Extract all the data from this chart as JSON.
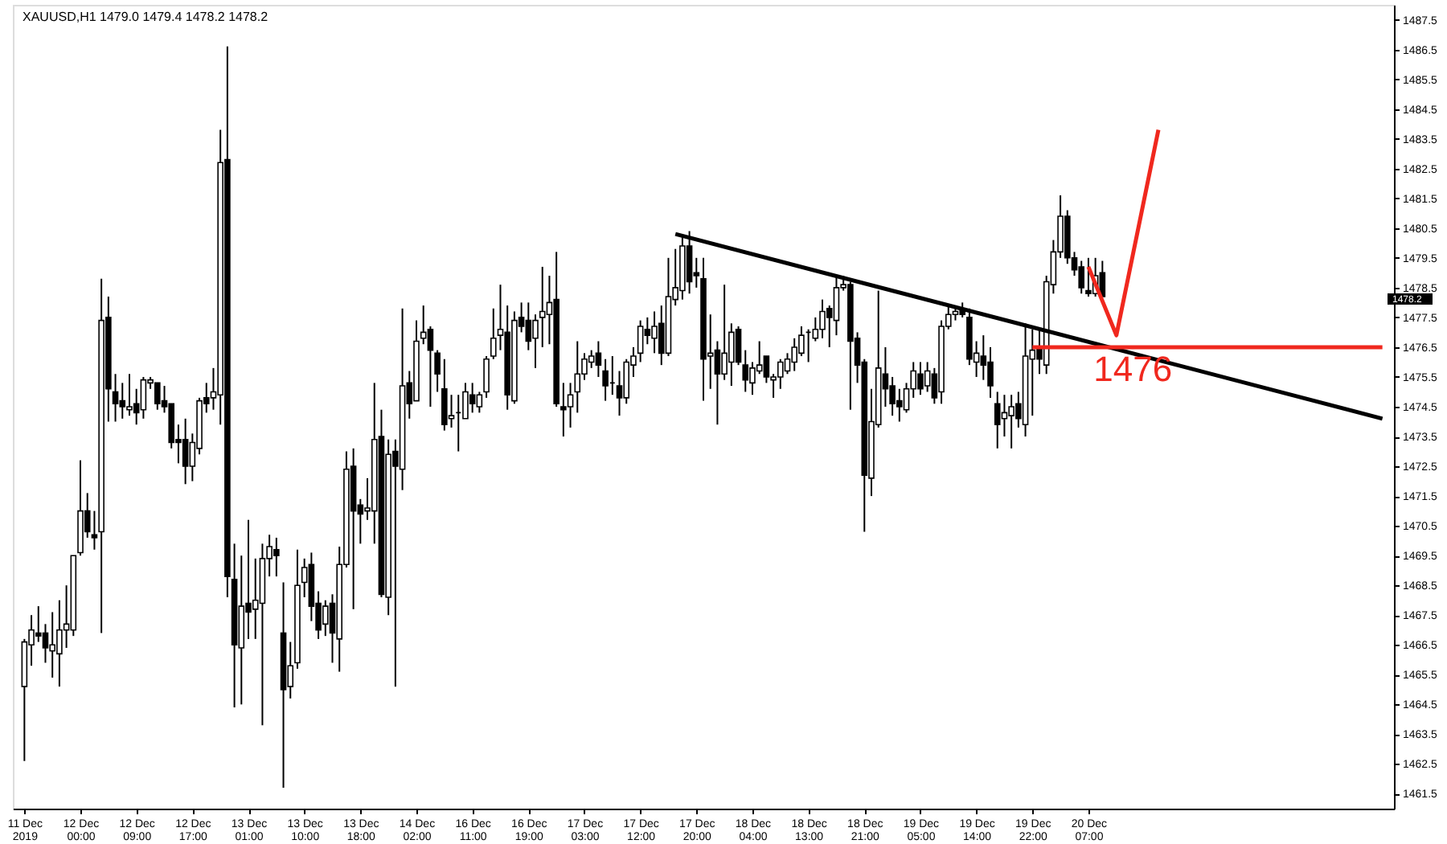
{
  "chart_data": {
    "type": "candlestick",
    "title": "XAUUSD,H1  1479.0 1479.4 1478.2 1478.2",
    "categories": [
      "11 Dec 2019",
      null,
      null,
      null,
      null,
      null,
      null,
      null,
      "12 Dec 00:00",
      null,
      null,
      null,
      null,
      null,
      null,
      null,
      "12 Dec 09:00",
      null,
      null,
      null,
      null,
      null,
      null,
      null,
      "12 Dec 17:00",
      null,
      null,
      null,
      null,
      null,
      null,
      null,
      "13 Dec 01:00",
      null,
      null,
      null,
      null,
      null,
      null,
      null,
      "13 Dec 10:00",
      null,
      null,
      null,
      null,
      null,
      null,
      null,
      "13 Dec 18:00",
      null,
      null,
      null,
      null,
      null,
      null,
      null,
      "14 Dec 02:00",
      null,
      null,
      null,
      null,
      null,
      null,
      null,
      "16 Dec 11:00",
      null,
      null,
      null,
      null,
      null,
      null,
      null,
      "16 Dec 19:00",
      null,
      null,
      null,
      null,
      null,
      null,
      null,
      "17 Dec 03:00",
      null,
      null,
      null,
      null,
      null,
      null,
      null,
      "17 Dec 12:00",
      null,
      null,
      null,
      null,
      null,
      null,
      null,
      "17 Dec 20:00",
      null,
      null,
      null,
      null,
      null,
      null,
      null,
      "18 Dec 04:00",
      null,
      null,
      null,
      null,
      null,
      null,
      null,
      "18 Dec 13:00",
      null,
      null,
      null,
      null,
      null,
      null,
      null,
      "18 Dec 21:00",
      null,
      null,
      null,
      null,
      null,
      null,
      null,
      "19 Dec 05:00",
      null,
      null,
      null,
      null,
      null,
      null,
      null,
      "19 Dec 14:00",
      null,
      null,
      null,
      null,
      null,
      null,
      null,
      "19 Dec 22:00",
      null,
      null,
      null,
      null,
      null,
      null,
      null,
      "20 Dec 07:00",
      null,
      null,
      null,
      null,
      null,
      null,
      null,
      null,
      null,
      null,
      null,
      null,
      null,
      null,
      null,
      null,
      null,
      null,
      null,
      null,
      null,
      null,
      null,
      null,
      null,
      null,
      null,
      null,
      null,
      null,
      null,
      null,
      null,
      null,
      null,
      null,
      null,
      null,
      null,
      null,
      null,
      null
    ],
    "ohlc": [
      [
        1465.1,
        1466.7,
        1462.6,
        1466.6
      ],
      [
        1466.5,
        1467.5,
        1465.8,
        1467.0
      ],
      [
        1466.9,
        1467.8,
        1466.6,
        1466.8
      ],
      [
        1466.9,
        1467.2,
        1465.9,
        1466.4
      ],
      [
        1466.3,
        1467.6,
        1465.4,
        1466.5
      ],
      [
        1466.2,
        1468.0,
        1465.1,
        1467.0
      ],
      [
        1467.0,
        1468.5,
        1466.4,
        1467.2
      ],
      [
        1467.0,
        1469.5,
        1466.8,
        1469.5
      ],
      [
        1469.6,
        1472.7,
        1469.5,
        1471.0
      ],
      [
        1471.0,
        1471.6,
        1470.1,
        1470.3
      ],
      [
        1470.2,
        1471.0,
        1469.7,
        1470.1
      ],
      [
        1470.3,
        1478.8,
        1466.9,
        1477.4
      ],
      [
        1477.5,
        1478.2,
        1474.0,
        1475.1
      ],
      [
        1475.0,
        1475.6,
        1474.0,
        1474.6
      ],
      [
        1474.7,
        1475.3,
        1474.1,
        1474.5
      ],
      [
        1474.4,
        1475.6,
        1474.2,
        1474.5
      ],
      [
        1474.6,
        1475.1,
        1473.9,
        1474.3
      ],
      [
        1474.4,
        1475.5,
        1474.1,
        1475.4
      ],
      [
        1475.3,
        1475.5,
        1475.1,
        1475.4
      ],
      [
        1475.3,
        1475.3,
        1474.4,
        1474.6
      ],
      [
        1474.7,
        1475.2,
        1474.3,
        1474.5
      ],
      [
        1474.6,
        1474.6,
        1473.1,
        1473.3
      ],
      [
        1473.4,
        1473.9,
        1472.6,
        1473.3
      ],
      [
        1473.4,
        1474.1,
        1471.9,
        1472.5
      ],
      [
        1472.5,
        1473.6,
        1472.0,
        1473.3
      ],
      [
        1473.1,
        1474.8,
        1472.9,
        1474.7
      ],
      [
        1474.8,
        1475.3,
        1474.3,
        1474.6
      ],
      [
        1474.8,
        1475.8,
        1474.4,
        1475.0
      ],
      [
        1474.9,
        1483.8,
        1473.9,
        1482.7
      ],
      [
        1482.8,
        1486.6,
        1468.1,
        1468.8
      ],
      [
        1468.7,
        1469.9,
        1464.4,
        1466.5
      ],
      [
        1466.4,
        1469.5,
        1464.5,
        1467.8
      ],
      [
        1467.9,
        1470.7,
        1466.7,
        1467.6
      ],
      [
        1467.7,
        1469.4,
        1466.7,
        1468.0
      ],
      [
        1467.9,
        1469.9,
        1463.8,
        1469.4
      ],
      [
        1469.4,
        1470.2,
        1468.8,
        1469.8
      ],
      [
        1469.7,
        1470.1,
        1468.8,
        1469.5
      ],
      [
        1466.9,
        1468.6,
        1461.7,
        1465.0
      ],
      [
        1465.1,
        1466.6,
        1464.7,
        1465.8
      ],
      [
        1465.9,
        1469.7,
        1465.7,
        1468.5
      ],
      [
        1468.6,
        1469.4,
        1468.1,
        1469.1
      ],
      [
        1469.2,
        1469.6,
        1467.3,
        1467.8
      ],
      [
        1467.9,
        1468.3,
        1466.7,
        1467.0
      ],
      [
        1467.2,
        1468.0,
        1466.8,
        1467.8
      ],
      [
        1467.9,
        1468.2,
        1465.9,
        1466.9
      ],
      [
        1466.7,
        1469.8,
        1465.6,
        1469.2
      ],
      [
        1469.2,
        1473.0,
        1469.1,
        1472.4
      ],
      [
        1472.5,
        1473.1,
        1467.7,
        1471.0
      ],
      [
        1471.2,
        1471.4,
        1469.9,
        1470.9
      ],
      [
        1471.0,
        1472.1,
        1470.7,
        1471.1
      ],
      [
        1471.0,
        1475.3,
        1469.9,
        1473.4
      ],
      [
        1473.5,
        1474.4,
        1468.1,
        1468.2
      ],
      [
        1468.1,
        1473.4,
        1467.5,
        1472.9
      ],
      [
        1473.0,
        1473.4,
        1465.1,
        1472.5
      ],
      [
        1472.4,
        1477.8,
        1471.7,
        1475.2
      ],
      [
        1475.3,
        1475.7,
        1474.1,
        1474.6
      ],
      [
        1474.7,
        1477.4,
        1474.7,
        1476.7
      ],
      [
        1476.8,
        1477.9,
        1476.6,
        1477.0
      ],
      [
        1477.1,
        1477.2,
        1474.5,
        1476.4
      ],
      [
        1476.3,
        1476.4,
        1475.0,
        1475.6
      ],
      [
        1475.1,
        1476.1,
        1473.7,
        1473.9
      ],
      [
        1474.1,
        1474.9,
        1473.8,
        1474.2
      ],
      [
        1474.3,
        1474.9,
        1473.0,
        1474.3
      ],
      [
        1474.1,
        1475.3,
        1474.1,
        1475.0
      ],
      [
        1474.9,
        1475.3,
        1474.3,
        1474.6
      ],
      [
        1474.5,
        1475.0,
        1474.3,
        1474.9
      ],
      [
        1475.0,
        1476.2,
        1474.8,
        1476.1
      ],
      [
        1476.2,
        1477.8,
        1476.1,
        1476.8
      ],
      [
        1476.9,
        1478.6,
        1476.4,
        1477.1
      ],
      [
        1477.0,
        1477.9,
        1474.4,
        1474.9
      ],
      [
        1474.7,
        1477.7,
        1474.6,
        1477.4
      ],
      [
        1477.5,
        1478.0,
        1477.0,
        1477.2
      ],
      [
        1477.4,
        1478.0,
        1476.4,
        1476.7
      ],
      [
        1476.8,
        1477.6,
        1475.8,
        1477.4
      ],
      [
        1477.5,
        1479.2,
        1476.5,
        1477.7
      ],
      [
        1477.6,
        1478.9,
        1476.6,
        1478.0
      ],
      [
        1478.1,
        1479.7,
        1474.5,
        1474.6
      ],
      [
        1474.5,
        1475.3,
        1473.5,
        1474.4
      ],
      [
        1474.5,
        1475.3,
        1473.8,
        1474.9
      ],
      [
        1475.0,
        1476.7,
        1474.3,
        1475.6
      ],
      [
        1475.6,
        1476.3,
        1475.4,
        1476.1
      ],
      [
        1476.0,
        1476.4,
        1475.8,
        1476.2
      ],
      [
        1476.3,
        1476.7,
        1475.5,
        1475.9
      ],
      [
        1475.7,
        1476.1,
        1474.7,
        1475.2
      ],
      [
        1475.3,
        1476.2,
        1474.9,
        1475.3
      ],
      [
        1475.2,
        1475.7,
        1474.2,
        1474.8
      ],
      [
        1474.8,
        1476.1,
        1474.6,
        1476.0
      ],
      [
        1475.9,
        1476.5,
        1475.5,
        1476.2
      ],
      [
        1476.3,
        1477.4,
        1476.0,
        1477.2
      ],
      [
        1477.1,
        1477.5,
        1476.6,
        1476.9
      ],
      [
        1476.8,
        1477.7,
        1476.3,
        1477.2
      ],
      [
        1477.3,
        1477.9,
        1475.9,
        1476.3
      ],
      [
        1476.3,
        1479.5,
        1476.2,
        1478.2
      ],
      [
        1478.1,
        1479.8,
        1477.9,
        1478.5
      ],
      [
        1478.4,
        1480.3,
        1478.1,
        1479.9
      ],
      [
        1479.9,
        1480.4,
        1478.3,
        1478.7
      ],
      [
        1479.0,
        1479.5,
        1478.5,
        1478.9
      ],
      [
        1478.8,
        1479.5,
        1474.7,
        1476.1
      ],
      [
        1476.2,
        1477.6,
        1475.1,
        1476.3
      ],
      [
        1476.4,
        1476.7,
        1473.9,
        1475.6
      ],
      [
        1475.6,
        1478.6,
        1475.4,
        1476.3
      ],
      [
        1476.0,
        1477.3,
        1475.2,
        1477.0
      ],
      [
        1477.1,
        1477.2,
        1475.9,
        1476.0
      ],
      [
        1475.9,
        1476.4,
        1475.0,
        1475.4
      ],
      [
        1475.3,
        1476.0,
        1474.9,
        1475.8
      ],
      [
        1475.7,
        1476.7,
        1475.6,
        1475.9
      ],
      [
        1476.2,
        1476.2,
        1475.3,
        1475.5
      ],
      [
        1475.4,
        1475.6,
        1474.8,
        1475.5
      ],
      [
        1475.5,
        1476.1,
        1475.1,
        1476.0
      ],
      [
        1475.7,
        1476.3,
        1475.6,
        1476.1
      ],
      [
        1476.0,
        1476.8,
        1475.7,
        1476.5
      ],
      [
        1476.3,
        1477.2,
        1476.2,
        1476.9
      ],
      [
        1477.0,
        1477.1,
        1476.0,
        1477.0
      ],
      [
        1476.8,
        1477.5,
        1476.7,
        1477.1
      ],
      [
        1477.1,
        1478.1,
        1476.8,
        1477.7
      ],
      [
        1477.8,
        1477.9,
        1476.5,
        1477.5
      ],
      [
        1477.4,
        1478.9,
        1476.9,
        1478.5
      ],
      [
        1478.5,
        1478.9,
        1478.4,
        1478.6
      ],
      [
        1478.6,
        1478.7,
        1474.4,
        1476.7
      ],
      [
        1476.8,
        1477.0,
        1475.3,
        1475.9
      ],
      [
        1476.0,
        1476.1,
        1470.3,
        1472.2
      ],
      [
        1472.1,
        1475.1,
        1471.5,
        1474.0
      ],
      [
        1473.9,
        1478.4,
        1473.8,
        1475.8
      ],
      [
        1475.6,
        1476.5,
        1474.5,
        1475.1
      ],
      [
        1475.2,
        1475.5,
        1474.2,
        1474.6
      ],
      [
        1474.7,
        1475.1,
        1474.0,
        1474.5
      ],
      [
        1474.4,
        1475.3,
        1474.3,
        1475.1
      ],
      [
        1475.1,
        1476.0,
        1474.8,
        1475.7
      ],
      [
        1475.6,
        1476.0,
        1474.9,
        1475.1
      ],
      [
        1475.2,
        1476.0,
        1475.0,
        1475.7
      ],
      [
        1475.6,
        1475.8,
        1474.6,
        1474.8
      ],
      [
        1475.0,
        1477.4,
        1474.6,
        1477.2
      ],
      [
        1477.2,
        1477.9,
        1477.1,
        1477.6
      ],
      [
        1477.6,
        1477.8,
        1477.4,
        1477.7
      ],
      [
        1477.8,
        1478.0,
        1477.5,
        1477.6
      ],
      [
        1477.5,
        1477.8,
        1475.9,
        1476.1
      ],
      [
        1476.0,
        1476.7,
        1475.5,
        1476.3
      ],
      [
        1476.2,
        1476.9,
        1475.4,
        1475.9
      ],
      [
        1476.0,
        1476.5,
        1474.8,
        1475.2
      ],
      [
        1474.6,
        1475.0,
        1473.1,
        1473.9
      ],
      [
        1474.1,
        1474.9,
        1473.5,
        1474.3
      ],
      [
        1474.2,
        1474.9,
        1473.1,
        1474.5
      ],
      [
        1474.6,
        1475.0,
        1473.8,
        1474.1
      ],
      [
        1473.9,
        1477.3,
        1473.5,
        1476.2
      ],
      [
        1476.1,
        1477.1,
        1474.2,
        1476.4
      ],
      [
        1476.5,
        1477.1,
        1475.6,
        1476.1
      ],
      [
        1475.9,
        1478.9,
        1475.6,
        1478.7
      ],
      [
        1478.6,
        1480.1,
        1478.3,
        1479.7
      ],
      [
        1479.7,
        1481.6,
        1479.5,
        1480.9
      ],
      [
        1480.9,
        1481.1,
        1479.3,
        1479.5
      ],
      [
        1479.5,
        1479.7,
        1478.9,
        1479.1
      ],
      [
        1479.2,
        1479.4,
        1478.3,
        1478.5
      ],
      [
        1478.4,
        1479.5,
        1478.2,
        1478.3
      ],
      [
        1478.3,
        1479.5,
        1478.2,
        1478.9
      ],
      [
        1479.0,
        1479.4,
        1478.2,
        1478.2
      ],
      null,
      null,
      null,
      null,
      null,
      null,
      null,
      null,
      null,
      null,
      null,
      null,
      null,
      null,
      null,
      null,
      null,
      null,
      null,
      null,
      null,
      null,
      null,
      null,
      null,
      null,
      null,
      null,
      null,
      null,
      null,
      null,
      null,
      null,
      null,
      null,
      null,
      null,
      null,
      null
    ],
    "series": [
      {
        "type": "line",
        "color": "#000000",
        "values": [
          null,
          null,
          null,
          null,
          null,
          null,
          null,
          null,
          null,
          null,
          null,
          null,
          null,
          null,
          null,
          null,
          null,
          null,
          null,
          null,
          null,
          null,
          null,
          null,
          null,
          null,
          null,
          null,
          null,
          null,
          null,
          null,
          null,
          null,
          null,
          null,
          null,
          null,
          null,
          null,
          null,
          null,
          null,
          null,
          null,
          null,
          null,
          null,
          null,
          null,
          null,
          null,
          null,
          null,
          null,
          null,
          null,
          null,
          null,
          null,
          null,
          null,
          null,
          null,
          null,
          null,
          null,
          null,
          null,
          null,
          null,
          null,
          null,
          null,
          null,
          null,
          null,
          null,
          null,
          null,
          null,
          null,
          null,
          null,
          null,
          null,
          null,
          null,
          null,
          null,
          null,
          null,
          null,
          1480.3,
          null,
          null,
          null,
          null,
          null,
          null,
          null,
          null,
          null,
          null,
          null,
          null,
          null,
          null,
          null,
          null,
          null,
          null,
          null,
          null,
          null,
          null,
          null,
          null,
          null,
          null,
          null,
          null,
          null,
          null,
          null,
          null,
          null,
          null,
          null,
          null,
          null,
          null,
          null,
          null,
          null,
          null,
          null,
          null,
          null,
          null,
          null,
          null,
          null,
          null,
          null,
          null,
          null,
          null,
          null,
          null,
          null,
          null,
          null,
          null,
          null,
          null,
          null,
          null,
          null,
          null,
          null,
          null,
          null,
          null,
          null,
          null,
          null,
          null,
          null,
          null,
          null,
          null,
          null,
          null,
          null,
          null,
          null,
          null,
          null,
          null,
          null,
          null,
          null,
          null,
          null,
          null,
          null,
          null,
          null,
          null,
          null,
          null,
          null,
          null,
          1474.1
        ]
      },
      {
        "type": "line",
        "color": "#f0281e",
        "values": [
          null,
          null,
          null,
          null,
          null,
          null,
          null,
          null,
          null,
          null,
          null,
          null,
          null,
          null,
          null,
          null,
          null,
          null,
          null,
          null,
          null,
          null,
          null,
          null,
          null,
          null,
          null,
          null,
          null,
          null,
          null,
          null,
          null,
          null,
          null,
          null,
          null,
          null,
          null,
          null,
          null,
          null,
          null,
          null,
          null,
          null,
          null,
          null,
          null,
          null,
          null,
          null,
          null,
          null,
          null,
          null,
          null,
          null,
          null,
          null,
          null,
          null,
          null,
          null,
          null,
          null,
          null,
          null,
          null,
          null,
          null,
          null,
          null,
          null,
          null,
          null,
          null,
          null,
          null,
          null,
          null,
          null,
          null,
          null,
          null,
          null,
          null,
          null,
          null,
          null,
          null,
          null,
          null,
          null,
          null,
          null,
          null,
          null,
          null,
          null,
          null,
          null,
          null,
          null,
          null,
          null,
          null,
          null,
          null,
          null,
          null,
          null,
          null,
          null,
          null,
          null,
          null,
          null,
          null,
          null,
          null,
          null,
          null,
          null,
          null,
          null,
          null,
          null,
          null,
          null,
          null,
          null,
          null,
          null,
          null,
          null,
          null,
          null,
          null,
          null,
          null,
          null,
          null,
          null,
          1476.5,
          null,
          null,
          null,
          null,
          null,
          null,
          null,
          null,
          null,
          null,
          null,
          null,
          null,
          null,
          null,
          null,
          null,
          null,
          null,
          null,
          null,
          null,
          null,
          null,
          null,
          null,
          null,
          null,
          null,
          null,
          null,
          null,
          null,
          null,
          null,
          null,
          null,
          null,
          null,
          null,
          null,
          null,
          null,
          null,
          null,
          null,
          null,
          null,
          null,
          1476.5
        ]
      },
      {
        "type": "line",
        "color": "#f0281e",
        "values": [
          null,
          null,
          null,
          null,
          null,
          null,
          null,
          null,
          null,
          null,
          null,
          null,
          null,
          null,
          null,
          null,
          null,
          null,
          null,
          null,
          null,
          null,
          null,
          null,
          null,
          null,
          null,
          null,
          null,
          null,
          null,
          null,
          null,
          null,
          null,
          null,
          null,
          null,
          null,
          null,
          null,
          null,
          null,
          null,
          null,
          null,
          null,
          null,
          null,
          null,
          null,
          null,
          null,
          null,
          null,
          null,
          null,
          null,
          null,
          null,
          null,
          null,
          null,
          null,
          null,
          null,
          null,
          null,
          null,
          null,
          null,
          null,
          null,
          null,
          null,
          null,
          null,
          null,
          null,
          null,
          null,
          null,
          null,
          null,
          null,
          null,
          null,
          null,
          null,
          null,
          null,
          null,
          null,
          null,
          null,
          null,
          null,
          null,
          null,
          null,
          null,
          null,
          null,
          null,
          null,
          null,
          null,
          null,
          null,
          null,
          null,
          null,
          null,
          null,
          null,
          null,
          null,
          null,
          null,
          null,
          null,
          null,
          null,
          null,
          null,
          null,
          null,
          null,
          null,
          null,
          null,
          null,
          null,
          null,
          null,
          null,
          null,
          null,
          null,
          null,
          null,
          null,
          null,
          null,
          null,
          null,
          null,
          null,
          null,
          null,
          null,
          null,
          1479.2,
          null,
          null,
          null,
          1476.9,
          null,
          null,
          null,
          null,
          null,
          1483.8,
          null,
          null,
          null,
          null,
          null,
          null,
          null,
          null,
          null,
          null,
          null,
          null,
          null,
          null,
          null,
          null,
          null,
          null,
          null,
          null,
          null,
          null,
          null,
          null,
          null,
          null,
          null,
          null,
          null,
          null,
          null,
          null
        ]
      }
    ],
    "annotations": [
      "1476",
      "1478.2"
    ],
    "ylim": [
      1461.0,
      1488.0
    ],
    "yticks": [
      1461.5,
      1462.5,
      1463.5,
      1464.5,
      1465.5,
      1466.5,
      1467.5,
      1468.5,
      1469.5,
      1470.5,
      1471.5,
      1472.5,
      1473.5,
      1474.5,
      1475.5,
      1476.5,
      1477.5,
      1478.5,
      1479.5,
      1480.5,
      1481.5,
      1482.5,
      1483.5,
      1484.5,
      1485.5,
      1486.5,
      1487.5
    ],
    "grid": false
  }
}
